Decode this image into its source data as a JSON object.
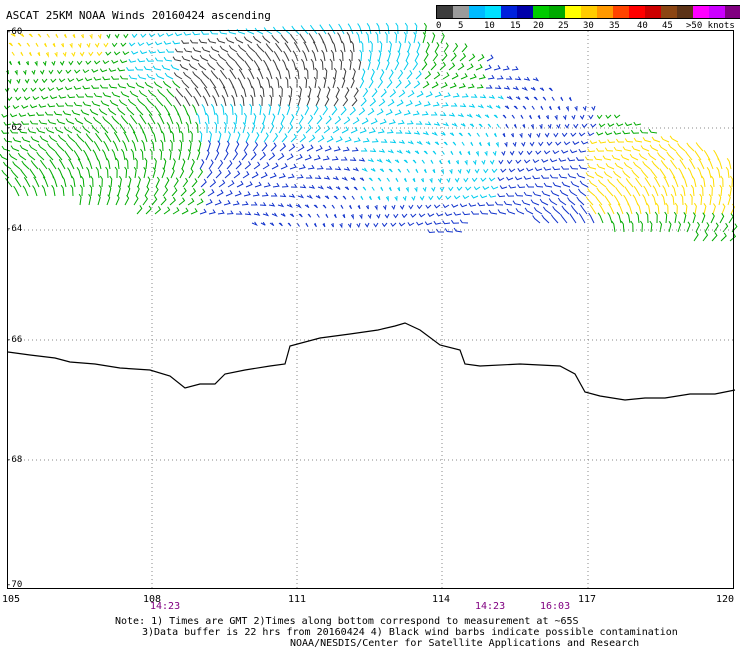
{
  "title": "ASCAT 25KM NOAA Winds 20160424 ascending",
  "legend": {
    "colors": [
      "#3c3c3c",
      "#9b9b9b",
      "#00bbff",
      "#00e1ff",
      "#0022dd",
      "#0000aa",
      "#00cc00",
      "#00aa00",
      "#ffff00",
      "#ffcc00",
      "#ff9900",
      "#ff4400",
      "#ff0000",
      "#cc0000",
      "#8b4513",
      "#5c3317",
      "#ff00ff",
      "#cc00ff",
      "#800080",
      "#4b0082"
    ],
    "labels": [
      "0",
      "5",
      "10",
      "15",
      "20",
      "25",
      "30",
      "35",
      "40",
      "45",
      ">50 knots"
    ]
  },
  "lat_labels": [
    "-60",
    "-62",
    "-64",
    "-66",
    "-68",
    "-70"
  ],
  "lon_labels": [
    "105",
    "108",
    "111",
    "114",
    "117",
    "120"
  ],
  "times": [
    "14:23",
    "14:23",
    "16:03"
  ],
  "notes": [
    "Note: 1) Times are GMT 2)Times along bottom correspond to measurement at ~65S",
    "3)Data buffer is 22 hrs from 20160424 4) Black wind barbs indicate possible contamination",
    "NOAA/NESDIS/Center for Satellite Applications and Research"
  ]
}
